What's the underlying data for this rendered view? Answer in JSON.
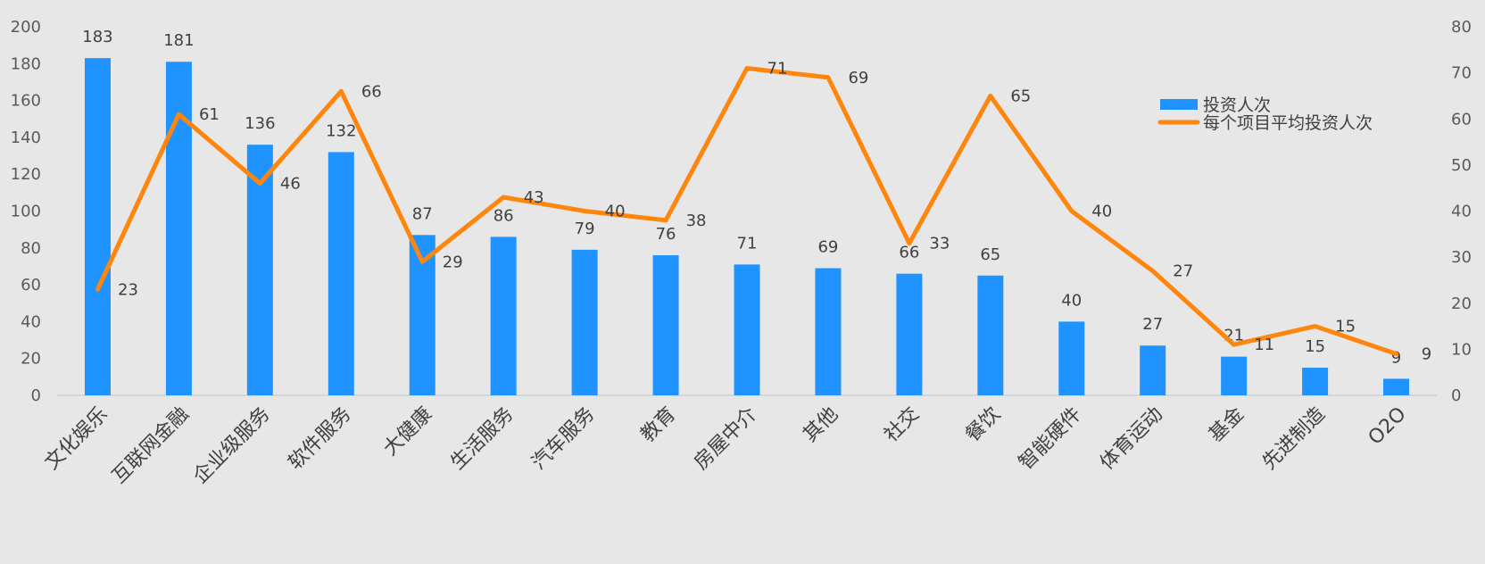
{
  "chart_data": {
    "type": "bar",
    "categories": [
      "文化娱乐",
      "互联网金融",
      "企业级服务",
      "软件服务",
      "大健康",
      "生活服务",
      "汽车服务",
      "教育",
      "房屋中介",
      "其他",
      "社交",
      "餐饮",
      "智能硬件",
      "体育运动",
      "基金",
      "先进制造",
      "O2O"
    ],
    "series": [
      {
        "name": "投资人次",
        "type": "bar",
        "axis": "left",
        "color": "#1f93ff",
        "values": [
          183,
          181,
          136,
          132,
          87,
          86,
          79,
          76,
          71,
          69,
          66,
          65,
          40,
          27,
          21,
          15,
          9
        ]
      },
      {
        "name": "每个项目平均投资人次",
        "type": "line",
        "axis": "right",
        "color": "#ff860d",
        "values": [
          23,
          61,
          46,
          66,
          29,
          43,
          40,
          38,
          71,
          69,
          33,
          65,
          40,
          27,
          11,
          15,
          9
        ]
      }
    ],
    "ylim": [
      0,
      200
    ],
    "y2lim": [
      0,
      80
    ],
    "yticks": [
      "0",
      "20",
      "40",
      "60",
      "80",
      "100",
      "120",
      "140",
      "160",
      "180",
      "200"
    ],
    "y2ticks": [
      "0",
      "10",
      "20",
      "30",
      "40",
      "50",
      "60",
      "70",
      "80"
    ],
    "grid": false,
    "legend": "top-right"
  }
}
